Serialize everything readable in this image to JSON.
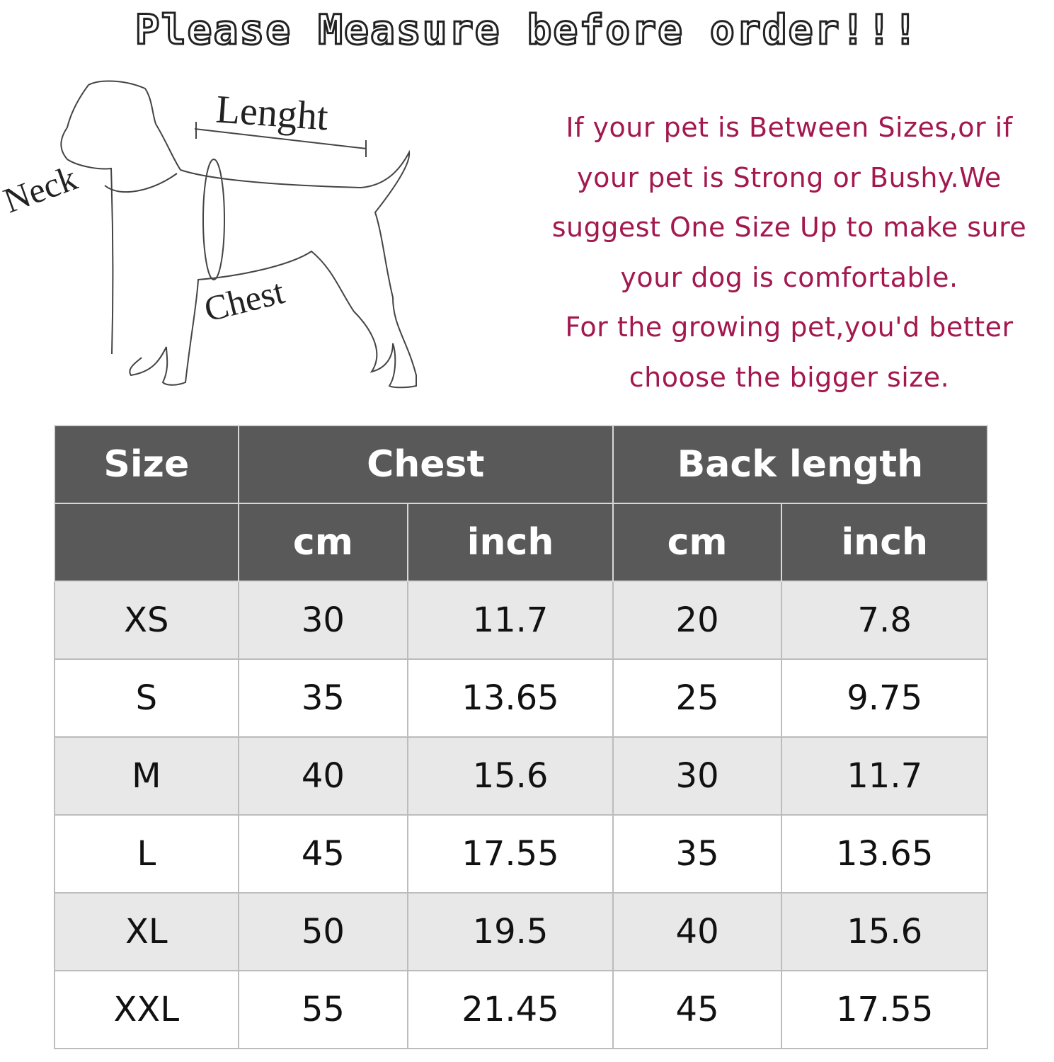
{
  "title": "Please Measure before order!!!",
  "diagram": {
    "labels": {
      "length": "Lenght",
      "neck": "Neck",
      "chest": "Chest"
    }
  },
  "note": [
    "If your pet is Between Sizes,or if",
    "your pet is Strong or Bushy.We",
    "suggest One Size Up to make sure",
    "your dog is comfortable.",
    "For the growing pet,you'd better",
    "choose the bigger size."
  ],
  "colors": {
    "note_text": "#a3184f",
    "header_bg": "#595959",
    "alt_row_bg": "#e8e8e8"
  },
  "table": {
    "headers": {
      "size": "Size",
      "chest": "Chest",
      "back_length": "Back length"
    },
    "units": [
      "cm",
      "inch",
      "cm",
      "inch"
    ],
    "rows": [
      [
        "XS",
        "30",
        "11.7",
        "20",
        "7.8"
      ],
      [
        "S",
        "35",
        "13.65",
        "25",
        "9.75"
      ],
      [
        "M",
        "40",
        "15.6",
        "30",
        "11.7"
      ],
      [
        "L",
        "45",
        "17.55",
        "35",
        "13.65"
      ],
      [
        "XL",
        "50",
        "19.5",
        "40",
        "15.6"
      ],
      [
        "XXL",
        "55",
        "21.45",
        "45",
        "17.55"
      ]
    ]
  }
}
